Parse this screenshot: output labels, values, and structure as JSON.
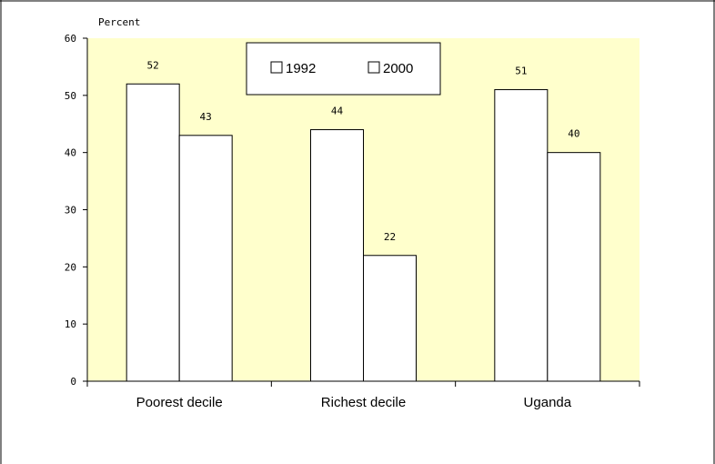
{
  "chart_data": {
    "type": "bar",
    "title": "",
    "xlabel": "",
    "ylabel": "Percent",
    "ylim": [
      0,
      60
    ],
    "yticks": [
      0,
      10,
      20,
      30,
      40,
      50,
      60
    ],
    "categories": [
      "Poorest decile",
      "Richest decile",
      "Uganda"
    ],
    "series": [
      {
        "name": "1992",
        "values": [
          52,
          44,
          51
        ]
      },
      {
        "name": "2000",
        "values": [
          43,
          22,
          40
        ]
      }
    ],
    "data_labels": [
      [
        "52",
        "44",
        "51"
      ],
      [
        "43",
        "22",
        "40"
      ]
    ],
    "legend_position": "top-center",
    "grid": false,
    "colors": {
      "plot_background": "#ffffcc",
      "bar_fill": "#ffffff",
      "bar_stroke": "#000000"
    }
  }
}
